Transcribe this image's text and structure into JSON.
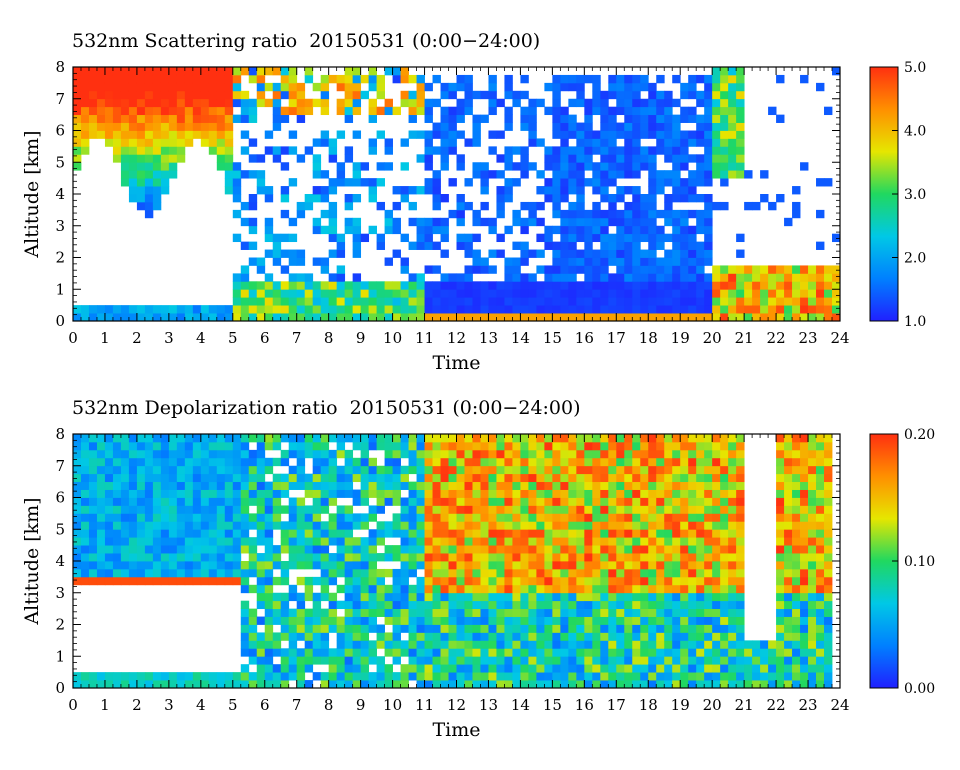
{
  "panels": [
    {
      "title": "532nm Scattering ratio  20150531 (0:00−24:00)",
      "xlabel": "Time",
      "ylabel": "Altitude [km]",
      "colorbar_ticks": [
        "5.0",
        "4.0",
        "3.0",
        "2.0",
        "1.0"
      ]
    },
    {
      "title": "532nm Depolarization ratio  20150531 (0:00−24:00)",
      "xlabel": "Time",
      "ylabel": "Altitude [km]",
      "colorbar_ticks": [
        "0.20",
        "0.10",
        "0.00"
      ]
    }
  ],
  "chart_data": [
    {
      "type": "heatmap",
      "title": "532nm Scattering ratio  20150531 (0:00−24:00)",
      "xlabel": "Time",
      "ylabel": "Altitude [km]",
      "xlim": [
        0,
        24
      ],
      "ylim": [
        0,
        8
      ],
      "x_ticks": [
        0,
        1,
        2,
        3,
        4,
        5,
        6,
        7,
        8,
        9,
        10,
        11,
        12,
        13,
        14,
        15,
        16,
        17,
        18,
        19,
        20,
        21,
        22,
        23,
        24
      ],
      "y_ticks": [
        0,
        1,
        2,
        3,
        4,
        5,
        6,
        7,
        8
      ],
      "colorbar": {
        "min": 1.0,
        "max": 5.0,
        "ticks": [
          1.0,
          2.0,
          3.0,
          4.0,
          5.0
        ]
      },
      "colormap": [
        "#2020ff",
        "#0080ff",
        "#00c8e6",
        "#20d860",
        "#e6e600",
        "#ff9000",
        "#ff3010"
      ]
    },
    {
      "type": "heatmap",
      "title": "532nm Depolarization ratio  20150531 (0:00−24:00)",
      "xlabel": "Time",
      "ylabel": "Altitude [km]",
      "xlim": [
        0,
        24
      ],
      "ylim": [
        0,
        8
      ],
      "x_ticks": [
        0,
        1,
        2,
        3,
        4,
        5,
        6,
        7,
        8,
        9,
        10,
        11,
        12,
        13,
        14,
        15,
        16,
        17,
        18,
        19,
        20,
        21,
        22,
        23,
        24
      ],
      "y_ticks": [
        0,
        1,
        2,
        3,
        4,
        5,
        6,
        7,
        8
      ],
      "colorbar": {
        "min": 0.0,
        "max": 0.2,
        "ticks": [
          0.0,
          0.1,
          0.2
        ]
      },
      "colormap": [
        "#2020ff",
        "#0080ff",
        "#00c8e6",
        "#20d860",
        "#e6e600",
        "#ff9000",
        "#ff3010"
      ]
    }
  ]
}
